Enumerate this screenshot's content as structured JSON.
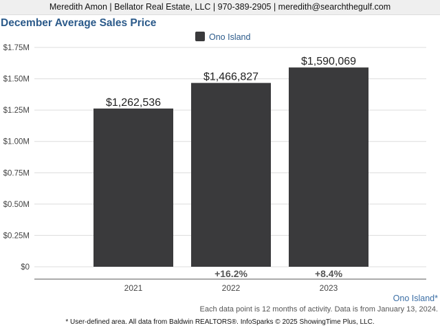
{
  "header": {
    "agent_line": "Meredith Amon | Bellator Real Estate, LLC | 970-389-2905 | meredith@searchthegulf.com"
  },
  "chart_data": {
    "type": "bar",
    "title": "December Average Sales Price",
    "categories": [
      "2021",
      "2022",
      "2023"
    ],
    "series": [
      {
        "name": "Ono Island",
        "values": [
          1262536,
          1466827,
          1590069
        ],
        "color": "#3a3a3c"
      }
    ],
    "data_labels": [
      "$1,262,536",
      "$1,466,827",
      "$1,590,069"
    ],
    "change_labels": [
      "",
      "+16.2%",
      "+8.4%"
    ],
    "y_ticks": [
      0,
      250000,
      500000,
      750000,
      1000000,
      1250000,
      1500000,
      1750000
    ],
    "y_tick_labels": [
      "$0",
      "$0.25M",
      "$0.50M",
      "$0.75M",
      "$1.00M",
      "$1.25M",
      "$1.50M",
      "$1.75M"
    ],
    "ylim": [
      0,
      1750000
    ],
    "grid": true,
    "legend_position": "top-center"
  },
  "footer": {
    "region_label": "Ono Island*",
    "data_note": "Each data point is 12 months of activity. Data is from January 13, 2024.",
    "source": "* User-defined area. All data from Baldwin REALTORS®. InfoSparks © 2025 ShowingTime Plus, LLC."
  }
}
